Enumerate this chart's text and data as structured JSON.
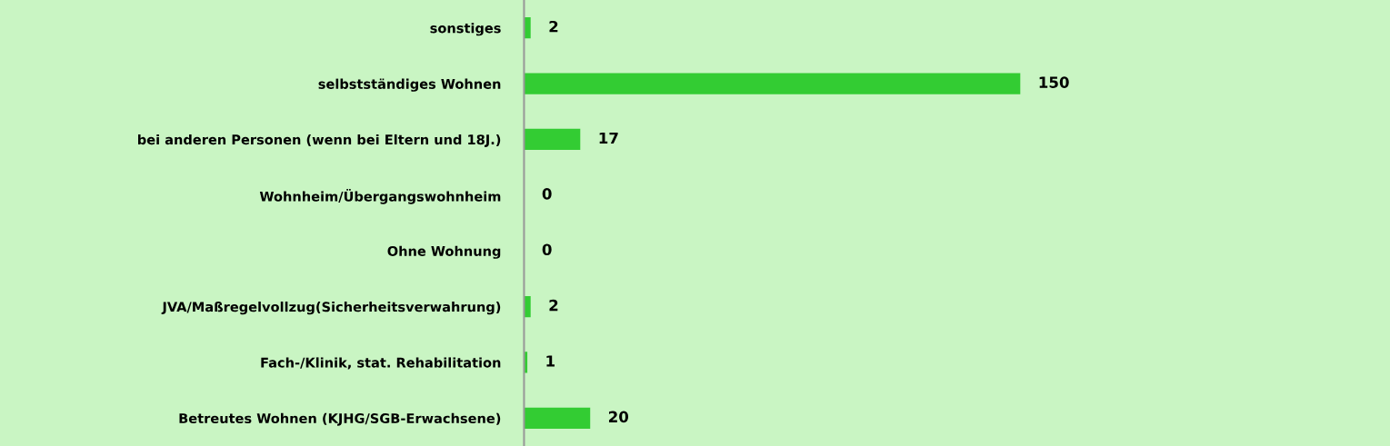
{
  "chart_data": {
    "type": "bar",
    "orientation": "horizontal",
    "categories": [
      "sonstiges",
      "selbstständiges Wohnen",
      "bei anderen Personen (wenn bei Eltern und 18J.)",
      "Wohnheim/Übergangswohnheim",
      "Ohne Wohnung",
      "JVA/Maßregelvollzug(Sicherheitsverwahrung)",
      "Fach-/Klinik, stat. Rehabilitation",
      "Betreutes Wohnen (KJHG/SGB-Erwachsene)"
    ],
    "values": [
      2,
      150,
      17,
      0,
      0,
      2,
      1,
      20
    ],
    "color": "#33cc33",
    "data_labels": true,
    "grid": false,
    "legend": false
  }
}
